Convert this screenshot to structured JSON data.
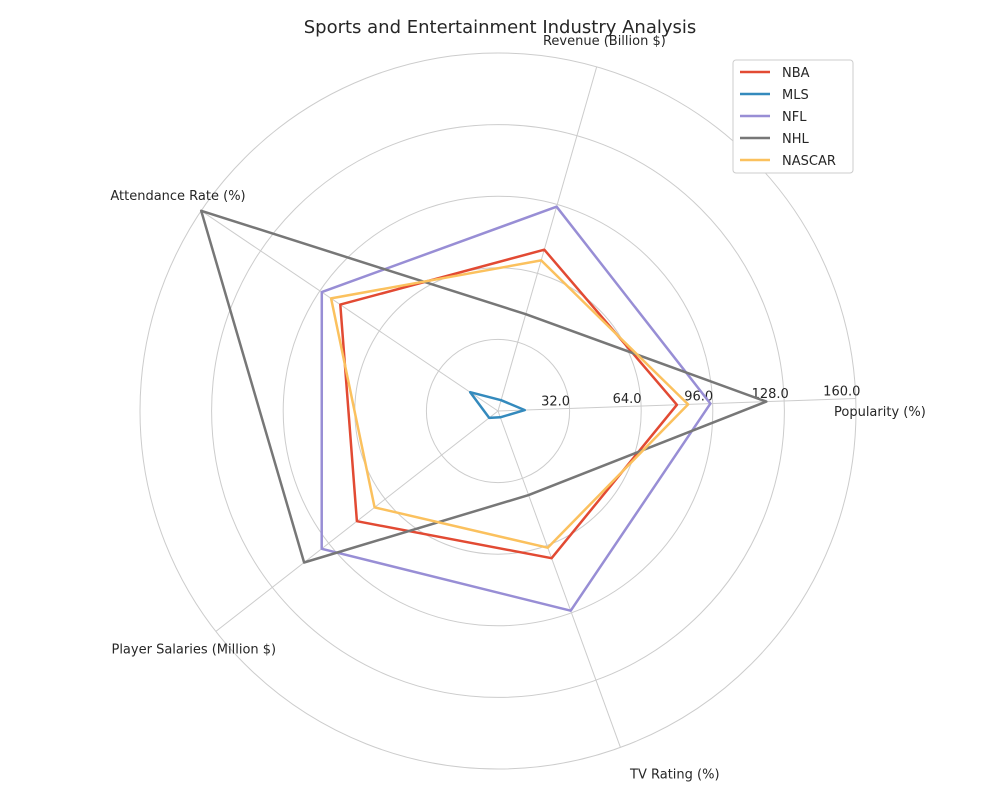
{
  "chart_data": {
    "type": "radar",
    "title": "Sports and Entertainment Industry Analysis",
    "axes": [
      "Popularity (%)",
      "Revenue (Billion $)",
      "Attendance Rate (%)",
      "Player Salaries (Million $)",
      "TV Rating (%)"
    ],
    "r_ticks": [
      "32.0",
      "64.0",
      "96.0",
      "128.0",
      "160.0"
    ],
    "r_max": 160,
    "grid": true,
    "legend_position": "top-right",
    "series": [
      {
        "name": "NBA",
        "color": "#E24A33",
        "values": [
          80,
          75,
          85,
          80,
          70
        ]
      },
      {
        "name": "MLS",
        "color": "#348ABD",
        "values": [
          12,
          5,
          15,
          5,
          3
        ]
      },
      {
        "name": "NFL",
        "color": "#988ED5",
        "values": [
          95,
          95,
          95,
          100,
          95
        ]
      },
      {
        "name": "NHL",
        "color": "#777777",
        "values": [
          120,
          45,
          160,
          110,
          40
        ]
      },
      {
        "name": "NASCAR",
        "color": "#FBC15E",
        "values": [
          85,
          70,
          90,
          70,
          65
        ]
      }
    ]
  }
}
